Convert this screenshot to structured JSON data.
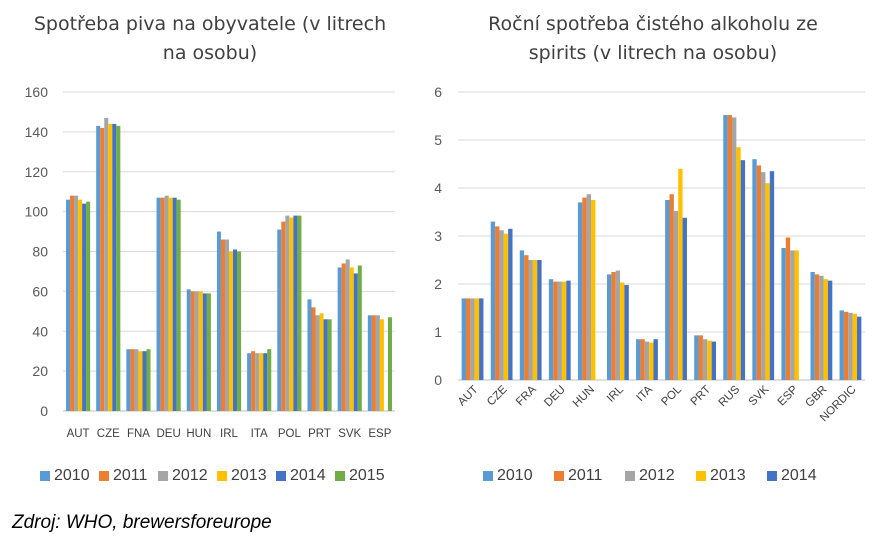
{
  "source": "Zdroj: WHO, brewersforeurope",
  "colors": {
    "2010": "#5b9bd5",
    "2011": "#ed7d31",
    "2012": "#a5a5a5",
    "2013": "#ffc000",
    "2014": "#4472c4",
    "2015": "#70ad47"
  },
  "chart_data": [
    {
      "type": "bar",
      "title_lines": [
        "Spotřeba piva na obyvatele (v litrech",
        "na osobu)"
      ],
      "categories": [
        "AUT",
        "CZE",
        "FNA",
        "DEU",
        "HUN",
        "IRL",
        "ITA",
        "POL",
        "PRT",
        "SVK",
        "ESP"
      ],
      "ylim": [
        0,
        160
      ],
      "yticks": [
        0,
        20,
        40,
        60,
        80,
        100,
        120,
        140,
        160
      ],
      "grid": true,
      "legend_position": "bottom",
      "series": [
        {
          "name": "2010",
          "color": "#5b9bd5",
          "values": [
            106,
            143,
            31,
            107,
            61,
            90,
            29,
            91,
            56,
            72,
            48
          ]
        },
        {
          "name": "2011",
          "color": "#ed7d31",
          "values": [
            108,
            142,
            31,
            107,
            60,
            86,
            30,
            95,
            52,
            74,
            48
          ]
        },
        {
          "name": "2012",
          "color": "#a5a5a5",
          "values": [
            108,
            147,
            31,
            108,
            60,
            86,
            29,
            98,
            48,
            76,
            48
          ]
        },
        {
          "name": "2013",
          "color": "#ffc000",
          "values": [
            106,
            144,
            30,
            107,
            60,
            80,
            29,
            97,
            49,
            72,
            46
          ]
        },
        {
          "name": "2014",
          "color": "#4472c4",
          "values": [
            104,
            144,
            30,
            107,
            59,
            81,
            29,
            98,
            46,
            69,
            null
          ]
        },
        {
          "name": "2015",
          "color": "#70ad47",
          "values": [
            105,
            143,
            31,
            106,
            59,
            80,
            31,
            98,
            46,
            73,
            47
          ]
        }
      ]
    },
    {
      "type": "bar",
      "title_lines": [
        "Roční spotřeba čistého alkoholu ze",
        "spirits (v litrech na osobu)"
      ],
      "categories": [
        "AUT",
        "CZE",
        "FRA",
        "DEU",
        "HUN",
        "IRL",
        "ITA",
        "POL",
        "PRT",
        "RUS",
        "SVK",
        "ESP",
        "GBR",
        "NORDIC"
      ],
      "ylim": [
        0,
        6
      ],
      "yticks": [
        0,
        1,
        2,
        3,
        4,
        5,
        6
      ],
      "grid": true,
      "legend_position": "bottom",
      "series": [
        {
          "name": "2010",
          "color": "#5b9bd5",
          "values": [
            1.7,
            3.3,
            2.7,
            2.1,
            3.7,
            2.2,
            0.85,
            3.75,
            0.93,
            5.52,
            4.6,
            2.75,
            2.25,
            1.45
          ]
        },
        {
          "name": "2011",
          "color": "#ed7d31",
          "values": [
            1.7,
            3.2,
            2.6,
            2.05,
            3.8,
            2.25,
            0.85,
            3.87,
            0.93,
            5.52,
            4.47,
            2.97,
            2.2,
            1.42
          ]
        },
        {
          "name": "2012",
          "color": "#a5a5a5",
          "values": [
            1.7,
            3.12,
            2.5,
            2.05,
            3.87,
            2.28,
            0.8,
            3.52,
            0.85,
            5.47,
            4.33,
            2.7,
            2.17,
            1.4
          ]
        },
        {
          "name": "2013",
          "color": "#ffc000",
          "values": [
            1.7,
            3.05,
            2.5,
            2.05,
            3.75,
            2.03,
            0.78,
            4.4,
            0.82,
            4.85,
            4.1,
            2.7,
            2.1,
            1.38
          ]
        },
        {
          "name": "2014",
          "color": "#4472c4",
          "values": [
            1.7,
            3.15,
            2.5,
            2.07,
            null,
            1.98,
            0.85,
            3.38,
            0.8,
            4.58,
            4.35,
            null,
            2.07,
            1.32
          ]
        }
      ]
    }
  ]
}
